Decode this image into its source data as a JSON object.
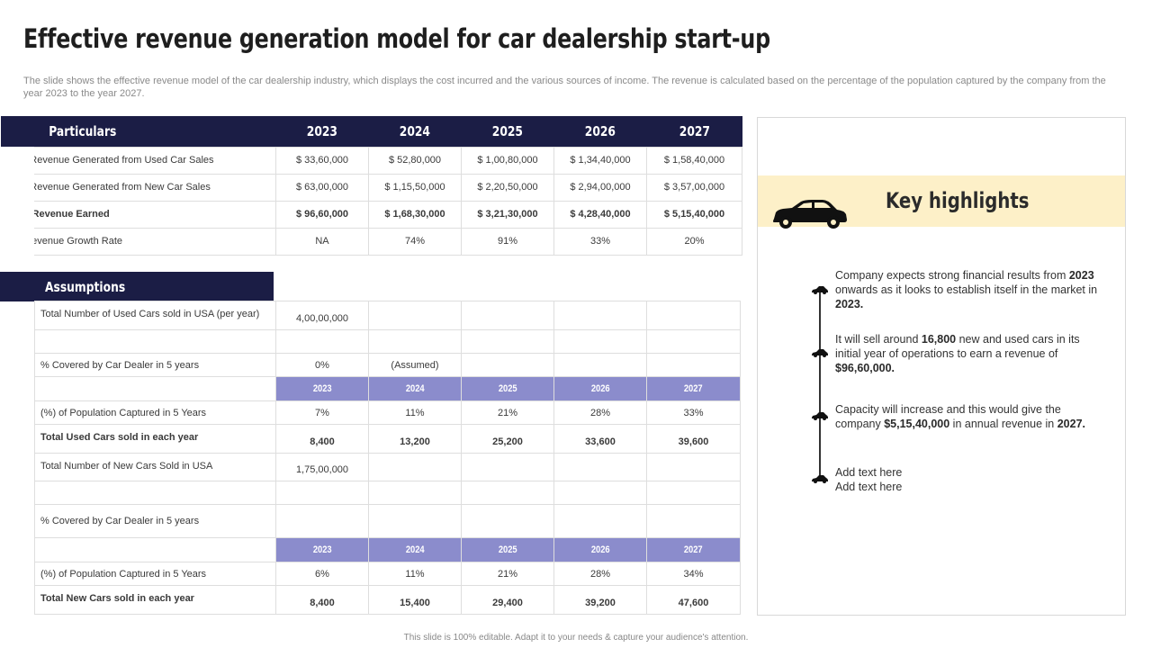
{
  "title": "Effective revenue generation model for car dealership start-up",
  "subtitle": "The slide shows the effective revenue model of the car dealership industry, which displays the cost incurred and the various sources of income. The revenue is calculated based on the percentage of the population captured by the company from the year 2023 to the year 2027.",
  "revenue_table": {
    "header": [
      "Particulars",
      "2023",
      "2024",
      "2025",
      "2026",
      "2027"
    ],
    "rows": [
      {
        "label": "Total Revenue Generated from Used Car Sales",
        "values": [
          "$ 33,60,000",
          "$ 52,80,000",
          "$ 1,00,80,000",
          "$ 1,34,40,000",
          "$ 1,58,40,000"
        ]
      },
      {
        "label": "Total Revenue Generated from New Car Sales",
        "values": [
          "$ 63,00,000",
          "$ 1,15,50,000",
          "$ 2,20,50,000",
          "$ 2,94,00,000",
          "$ 3,57,00,000"
        ]
      },
      {
        "label": "Total Revenue Earned",
        "values": [
          "$ 96,60,000",
          "$ 1,68,30,000",
          "$ 3,21,30,000",
          "$ 4,28,40,000",
          "$ 5,15,40,000"
        ]
      },
      {
        "label": "(%) Revenue Growth Rate",
        "values": [
          "NA",
          "74%",
          "91%",
          "33%",
          "20%"
        ]
      }
    ]
  },
  "assumptions": {
    "heading": "Assumptions",
    "used_total_label": "Total Number of Used Cars sold in USA (per year)",
    "used_total_value": "4,00,00,000",
    "used_covered_label": "% Covered by Car Dealer in 5 years",
    "used_covered_value": "0%",
    "used_covered_note": "(Assumed)",
    "years": [
      "2023",
      "2024",
      "2025",
      "2026",
      "2027"
    ],
    "used_pop_label": "(%) of Population Captured in 5 Years",
    "used_pop_values": [
      "7%",
      "11%",
      "21%",
      "28%",
      "33%"
    ],
    "used_sold_label": "Total Used Cars sold in each year",
    "used_sold_values": [
      "8,400",
      "13,200",
      "25,200",
      "33,600",
      "39,600"
    ],
    "new_total_label": "Total Number of New Cars Sold in USA",
    "new_total_value": "1,75,00,000",
    "new_covered_label": "% Covered by Car Dealer in 5 years",
    "new_pop_label": "(%) of Population Captured in 5 Years",
    "new_pop_values": [
      "6%",
      "11%",
      "21%",
      "28%",
      "34%"
    ],
    "new_sold_label": "Total New Cars sold in each year",
    "new_sold_values": [
      "8,400",
      "15,400",
      "29,400",
      "39,200",
      "47,600"
    ]
  },
  "key_highlights": {
    "title": "Key highlights",
    "items": [
      {
        "parts": [
          "Company expects strong financial results from ",
          "2023",
          " onwards  as it looks to establish itself in the market in ",
          "2023."
        ]
      },
      {
        "parts": [
          "It will sell around ",
          "16,800",
          " new and used cars in its initial year of operations to earn a revenue  of ",
          "$96,60,000."
        ]
      },
      {
        "parts": [
          "Capacity will increase and this would give the company ",
          "$5,15,40,000",
          " in annual revenue  in ",
          "2027."
        ]
      },
      {
        "line1": "Add text here",
        "line2": "Add text here"
      }
    ],
    "icon": "car-icon"
  },
  "footer": "This slide is 100% editable.  Adapt it to your needs & capture your audience's attention.",
  "colors": {
    "navy": "#1b1d45",
    "lavender": "#8b8ccc",
    "cream": "#fdf0c8"
  }
}
